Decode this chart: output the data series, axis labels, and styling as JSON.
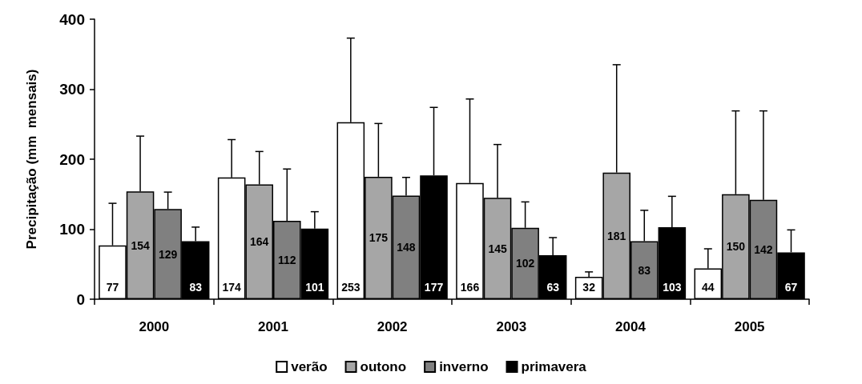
{
  "chart_data": {
    "type": "bar",
    "ylabel": "Precipitação (mm  mensais)",
    "categories": [
      "2000",
      "2001",
      "2002",
      "2003",
      "2004",
      "2005"
    ],
    "ylim": [
      0,
      400
    ],
    "yticks": [
      0,
      100,
      200,
      300,
      400
    ],
    "grid": false,
    "legend": "bottom",
    "data_labels": true,
    "series": [
      {
        "name": "verão",
        "color": "#ffffff",
        "values": [
          77,
          174,
          253,
          166,
          32,
          44
        ],
        "errors": [
          [
            77,
            137
          ],
          [
            174,
            228
          ],
          [
            253,
            373
          ],
          [
            166,
            286
          ],
          [
            32,
            39
          ],
          [
            44,
            72
          ]
        ]
      },
      {
        "name": "outono",
        "color": "#a6a6a6",
        "values": [
          154,
          164,
          175,
          145,
          181,
          150
        ],
        "errors": [
          [
            154,
            233
          ],
          [
            164,
            211
          ],
          [
            175,
            251
          ],
          [
            145,
            221
          ],
          [
            181,
            335
          ],
          [
            150,
            269
          ]
        ]
      },
      {
        "name": "inverno",
        "color": "#808080",
        "values": [
          129,
          112,
          148,
          102,
          83,
          142
        ],
        "errors": [
          [
            129,
            153
          ],
          [
            112,
            186
          ],
          [
            148,
            174
          ],
          [
            102,
            139
          ],
          [
            83,
            127
          ],
          [
            142,
            269
          ]
        ]
      },
      {
        "name": "primavera",
        "color": "#000000",
        "values": [
          83,
          101,
          177,
          63,
          103,
          67
        ],
        "errors": [
          [
            83,
            103
          ],
          [
            101,
            125
          ],
          [
            177,
            274
          ],
          [
            63,
            88
          ],
          [
            103,
            147
          ],
          [
            67,
            99
          ]
        ]
      }
    ]
  }
}
